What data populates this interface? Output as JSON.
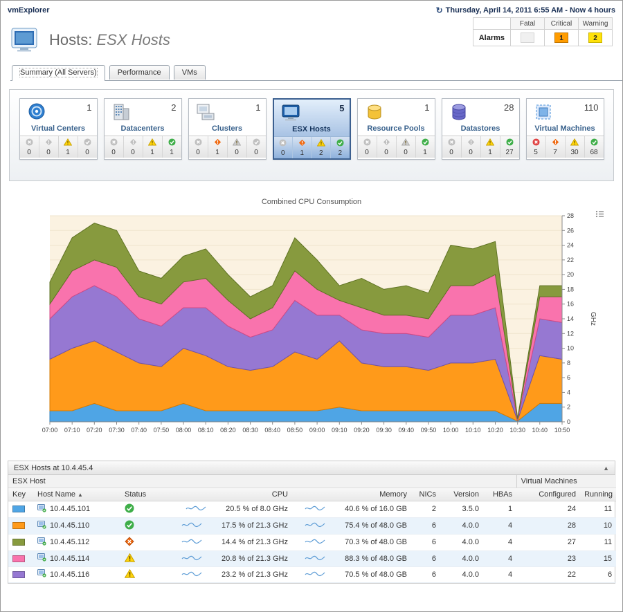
{
  "app": {
    "title": "vmExplorer",
    "time_range": "Thursday, April 14, 2011 6:55 AM - Now 4 hours"
  },
  "page": {
    "title_prefix": "Hosts:",
    "title_emphasis": "ESX Hosts"
  },
  "alarm_summary": {
    "row_label": "Alarms",
    "columns": [
      "Fatal",
      "Critical",
      "Warning"
    ],
    "values": {
      "fatal": "",
      "critical": "1",
      "warning": "2"
    }
  },
  "tabs": [
    {
      "label": "Summary (All Servers)",
      "active": true
    },
    {
      "label": "Performance",
      "active": false
    },
    {
      "label": "VMs",
      "active": false
    }
  ],
  "tiles": [
    {
      "name": "Virtual Centers",
      "count": "1",
      "icon": "virtual-center",
      "selected": false,
      "alarms": [
        0,
        0,
        1,
        0
      ]
    },
    {
      "name": "Datacenters",
      "count": "2",
      "icon": "datacenter",
      "selected": false,
      "alarms": [
        0,
        0,
        1,
        1
      ]
    },
    {
      "name": "Clusters",
      "count": "1",
      "icon": "cluster",
      "selected": false,
      "alarms": [
        0,
        1,
        0,
        0
      ]
    },
    {
      "name": "ESX Hosts",
      "count": "5",
      "icon": "esx-host",
      "selected": true,
      "alarms": [
        0,
        1,
        2,
        2
      ]
    },
    {
      "name": "Resource Pools",
      "count": "1",
      "icon": "resource-pool",
      "selected": false,
      "alarms": [
        0,
        0,
        0,
        1
      ]
    },
    {
      "name": "Datastores",
      "count": "28",
      "icon": "datastore",
      "selected": false,
      "alarms": [
        0,
        0,
        1,
        27
      ]
    },
    {
      "name": "Virtual Machines",
      "count": "110",
      "icon": "virtual-machine",
      "selected": false,
      "alarms": [
        5,
        7,
        30,
        68
      ]
    }
  ],
  "alarm_types": [
    "fatal",
    "critical",
    "warning",
    "normal"
  ],
  "chart_data": {
    "type": "area",
    "stacked": true,
    "title": "Combined CPU Consumption",
    "ylabel": "GHz",
    "ylim": [
      0,
      28
    ],
    "y_tick_step": 2,
    "x": [
      "07:00",
      "07:10",
      "07:20",
      "07:30",
      "07:40",
      "07:50",
      "08:00",
      "08:10",
      "08:20",
      "08:30",
      "08:40",
      "08:50",
      "09:00",
      "09:10",
      "09:20",
      "09:30",
      "09:40",
      "09:50",
      "10:00",
      "10:10",
      "10:20",
      "10:30",
      "10:40",
      "10:50"
    ],
    "series": [
      {
        "name": "10.4.45.101",
        "color": "#4fa5e5",
        "stroke": "#2f7fbe",
        "values": [
          1.5,
          1.5,
          2.5,
          1.5,
          1.5,
          1.5,
          2.5,
          1.5,
          1.5,
          1.5,
          1.5,
          1.5,
          1.5,
          2.0,
          1.5,
          1.5,
          1.5,
          1.5,
          1.5,
          1.5,
          1.5,
          0.1,
          2.5,
          2.5
        ]
      },
      {
        "name": "10.4.45.110",
        "color": "#ff9a1a",
        "stroke": "#d67a00",
        "values": [
          7.0,
          8.5,
          8.5,
          8.0,
          6.5,
          6.0,
          7.5,
          7.5,
          6.0,
          5.5,
          6.0,
          8.0,
          7.0,
          9.0,
          6.5,
          6.0,
          6.0,
          5.5,
          6.5,
          6.5,
          7.0,
          0.1,
          6.5,
          6.0
        ]
      },
      {
        "name": "10.4.45.116",
        "color": "#9678d2",
        "stroke": "#6e52ab",
        "values": [
          5.5,
          7.0,
          7.5,
          7.5,
          6.0,
          5.5,
          5.5,
          6.5,
          5.5,
          4.5,
          5.0,
          7.0,
          6.0,
          3.5,
          4.5,
          4.5,
          4.5,
          4.5,
          6.5,
          6.5,
          7.0,
          0.1,
          5.0,
          5.0
        ]
      },
      {
        "name": "10.4.45.114",
        "color": "#f973ad",
        "stroke": "#d14a85",
        "values": [
          2.0,
          3.5,
          3.5,
          4.0,
          3.0,
          3.0,
          3.5,
          4.0,
          3.5,
          2.5,
          3.0,
          4.0,
          3.5,
          2.0,
          3.0,
          2.5,
          2.5,
          2.5,
          4.0,
          4.0,
          4.5,
          0.1,
          3.0,
          3.5
        ]
      },
      {
        "name": "10.4.45.112",
        "color": "#879a3e",
        "stroke": "#5f7324",
        "values": [
          3.0,
          4.5,
          5.0,
          5.0,
          3.5,
          3.5,
          3.5,
          4.0,
          3.5,
          3.0,
          3.0,
          4.5,
          4.0,
          2.0,
          4.0,
          3.5,
          4.0,
          3.5,
          5.5,
          5.0,
          4.5,
          0.1,
          1.5,
          1.5
        ]
      }
    ]
  },
  "host_table": {
    "title": "ESX Hosts at 10.4.45.4",
    "group_headers": [
      "ESX Host",
      "Virtual Machines"
    ],
    "columns": [
      "Key",
      "Host Name",
      "Status",
      "CPU",
      "Memory",
      "NICs",
      "Version",
      "HBAs",
      "Configured",
      "Running"
    ],
    "rows": [
      {
        "key_color": "#4fa5e5",
        "host": "10.4.45.101",
        "status": "normal",
        "cpu": "20.5 % of 8.0 GHz",
        "memory": "40.6 % of 16.0 GB",
        "nics": "2",
        "version": "3.5.0",
        "hbas": "1",
        "configured": "24",
        "running": "11"
      },
      {
        "key_color": "#ff9a1a",
        "host": "10.4.45.110",
        "status": "normal",
        "cpu": "17.5 % of 21.3 GHz",
        "memory": "75.4 % of 48.0 GB",
        "nics": "6",
        "version": "4.0.0",
        "hbas": "4",
        "configured": "28",
        "running": "10"
      },
      {
        "key_color": "#879a3e",
        "host": "10.4.45.112",
        "status": "critical",
        "cpu": "14.4 % of 21.3 GHz",
        "memory": "70.3 % of 48.0 GB",
        "nics": "6",
        "version": "4.0.0",
        "hbas": "4",
        "configured": "27",
        "running": "11"
      },
      {
        "key_color": "#f973ad",
        "host": "10.4.45.114",
        "status": "warning",
        "cpu": "20.8 % of 21.3 GHz",
        "memory": "88.3 % of 48.0 GB",
        "nics": "6",
        "version": "4.0.0",
        "hbas": "4",
        "configured": "23",
        "running": "15"
      },
      {
        "key_color": "#9678d2",
        "host": "10.4.45.116",
        "status": "warning",
        "cpu": "23.2 % of 21.3 GHz",
        "memory": "70.5 % of 48.0 GB",
        "nics": "6",
        "version": "4.0.0",
        "hbas": "4",
        "configured": "22",
        "running": "6"
      }
    ]
  }
}
